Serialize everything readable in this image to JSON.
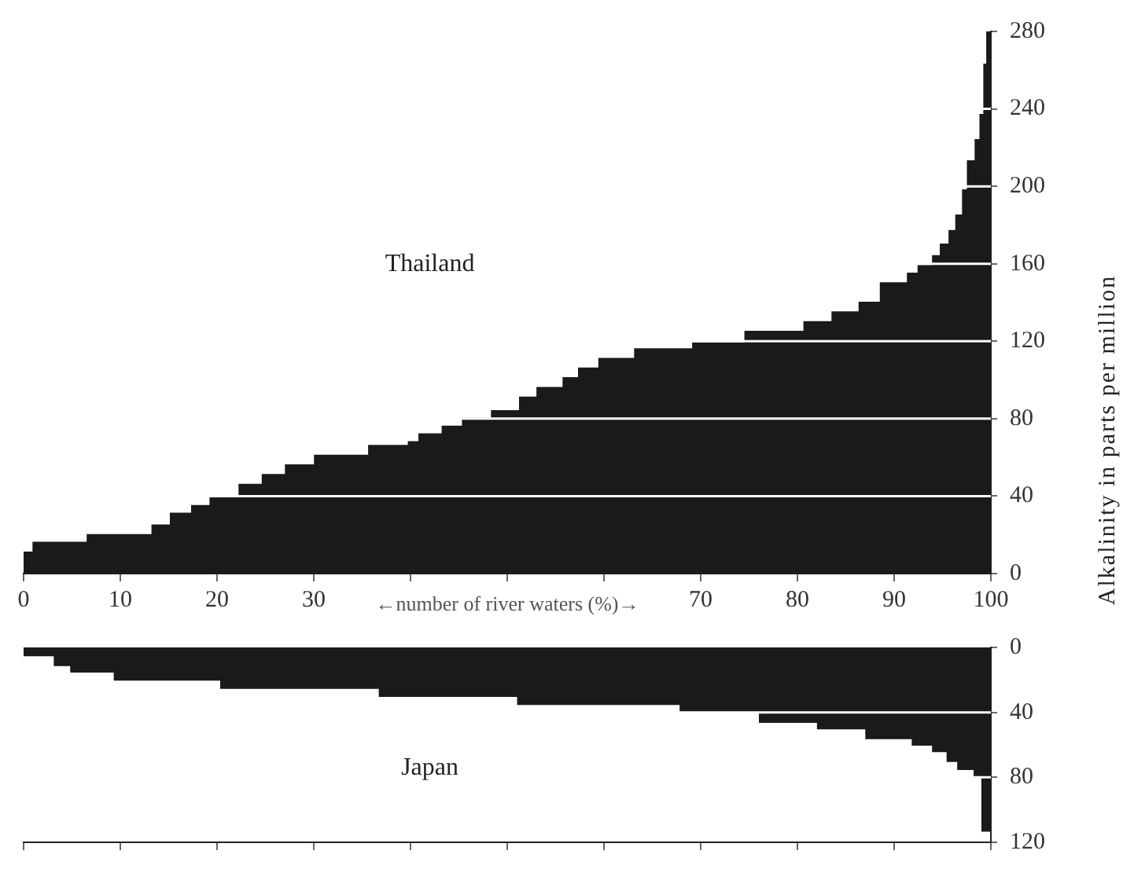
{
  "chart_data": [
    {
      "type": "area",
      "xlabel": "←number of river waters (%)→",
      "ylabel": "Alkalinity in parts per million",
      "grid": "y",
      "xlim": [
        0,
        100
      ],
      "xticks": [
        0,
        10,
        20,
        30,
        {
          "value": 40,
          "label": null
        },
        {
          "value": 50,
          "label": null
        },
        {
          "value": 60,
          "label": null
        },
        70,
        80,
        90,
        100
      ],
      "ylim": [
        0,
        280
      ],
      "yticks": [
        0,
        40,
        80,
        120,
        160,
        200,
        240,
        280
      ],
      "series": [
        {
          "name": "Thailand",
          "color": "#1a1a1a",
          "x": [
            0,
            1,
            1,
            6.6,
            6.6,
            13.3,
            13.3,
            15.2,
            15.2,
            17.4,
            17.4,
            19.3,
            19.3,
            22.3,
            22.3,
            24.7,
            24.7,
            27.1,
            27.1,
            30.1,
            30.1,
            35.7,
            35.7,
            39.8,
            39.8,
            40.9,
            40.9,
            43.3,
            43.3,
            45.4,
            45.4,
            48.4,
            48.4,
            51.3,
            51.3,
            53.1,
            53.1,
            55.8,
            55.8,
            57.4,
            57.4,
            59.5,
            59.5,
            63.2,
            63.2,
            69.2,
            69.2,
            74.6,
            74.6,
            80.7,
            80.7,
            83.6,
            83.6,
            86.4,
            86.4,
            88.6,
            88.6,
            91.4,
            91.4,
            92.5,
            92.5,
            94,
            94,
            94.8,
            94.8,
            95.7,
            95.7,
            96.4,
            96.4,
            97.1,
            97.1,
            97.6,
            97.6,
            98.4,
            98.4,
            98.9,
            98.9,
            99.3,
            99.3,
            99.6,
            99.6,
            100
          ],
          "values": [
            11,
            11,
            16,
            16,
            20,
            20,
            25,
            25,
            31,
            31,
            35,
            35,
            40,
            40,
            46,
            46,
            51,
            51,
            56,
            56,
            61,
            61,
            66,
            66,
            68,
            68,
            72,
            72,
            76,
            76,
            80,
            80,
            84,
            84,
            91,
            91,
            96,
            96,
            101,
            101,
            106,
            106,
            111,
            111,
            116,
            116,
            119,
            119,
            125,
            125,
            130,
            130,
            135,
            135,
            140,
            140,
            150,
            150,
            155,
            155,
            159,
            159,
            164,
            164,
            170,
            170,
            177,
            177,
            185,
            185,
            198,
            198,
            213,
            213,
            224,
            224,
            237,
            237,
            263,
            263,
            280,
            280
          ]
        }
      ]
    },
    {
      "type": "area",
      "tick_labels": "y",
      "grid": "y",
      "xlim": [
        0,
        100
      ],
      "xticks": [
        0,
        10,
        20,
        30,
        {
          "value": 40,
          "label": null
        },
        {
          "value": 50,
          "label": null
        },
        {
          "value": 60,
          "label": null
        },
        70,
        80,
        90,
        100
      ],
      "ylim": [
        120,
        0
      ],
      "yticks": [
        0,
        40,
        80,
        120
      ],
      "series": [
        {
          "name": "Japan",
          "color": "#1a1a1a",
          "x": [
            0,
            3.2,
            3.2,
            4.9,
            4.9,
            9.4,
            9.4,
            20.4,
            20.4,
            36.8,
            36.8,
            51.1,
            51.1,
            67.9,
            67.9,
            76.1,
            76.1,
            82.1,
            82.1,
            87.1,
            87.1,
            91.9,
            91.9,
            94,
            94,
            95.5,
            95.5,
            96.6,
            96.6,
            98.3,
            98.3,
            99.1,
            99.1,
            100
          ],
          "values": [
            5,
            5,
            11,
            11,
            15,
            15,
            20,
            20,
            25,
            25,
            30,
            30,
            35,
            35,
            40,
            40,
            46,
            46,
            50,
            50,
            56,
            56,
            60,
            60,
            64,
            64,
            70,
            70,
            75,
            75,
            80,
            80,
            113,
            113
          ]
        }
      ]
    }
  ]
}
